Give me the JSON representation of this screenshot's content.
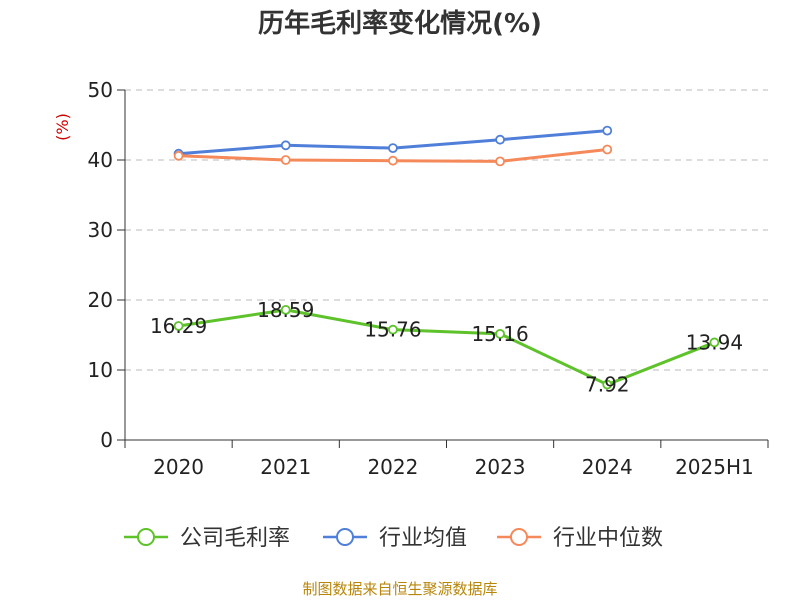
{
  "chart_data": {
    "type": "line",
    "title": "历年毛利率变化情况(%)",
    "unit_label": "(%)",
    "categories": [
      "2020",
      "2021",
      "2022",
      "2023",
      "2024",
      "2025H1"
    ],
    "ylim": [
      0,
      50
    ],
    "yticks": [
      0,
      10,
      20,
      30,
      40,
      50
    ],
    "grid": true,
    "legend_position": "bottom",
    "series": [
      {
        "name": "公司毛利率",
        "color": "#5ec22b",
        "values": [
          16.29,
          18.59,
          15.76,
          15.16,
          7.92,
          13.94
        ],
        "labels": [
          "16.29",
          "18.59",
          "15.76",
          "15.16",
          "7.92",
          "13.94"
        ]
      },
      {
        "name": "行业均值",
        "color": "#4f7fd9",
        "values": [
          40.9,
          42.1,
          41.7,
          42.9,
          44.2,
          null
        ]
      },
      {
        "name": "行业中位数",
        "color": "#f5895a",
        "values": [
          40.6,
          40.0,
          39.9,
          39.8,
          41.5,
          null
        ]
      }
    ],
    "source": "制图数据来自恒生聚源数据库"
  }
}
